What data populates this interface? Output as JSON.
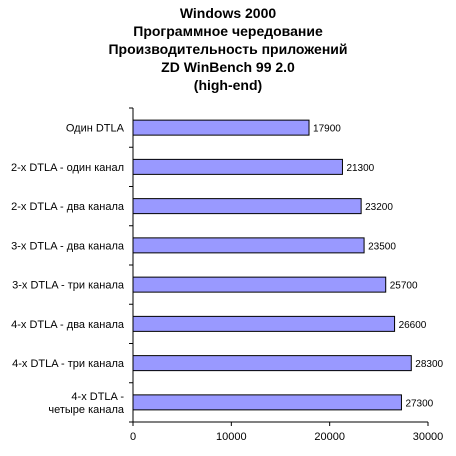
{
  "chart_data": {
    "type": "bar",
    "orientation": "horizontal",
    "title_lines": [
      "Windows 2000",
      "Программное чередование",
      "Производительность приложений",
      "ZD WinBench 99 2.0",
      "(high-end)"
    ],
    "categories": [
      [
        "Один DTLA"
      ],
      [
        "2-х DTLA - один канал"
      ],
      [
        "2-х DTLA - два канала"
      ],
      [
        "3-х DTLA - два канала"
      ],
      [
        "3-х DTLA - три канала"
      ],
      [
        "4-х DTLA - два канала"
      ],
      [
        "4-х DTLA - три канала"
      ],
      [
        "4-х DTLA -",
        "четыре канала"
      ]
    ],
    "values": [
      17900,
      21300,
      23200,
      23500,
      25700,
      26600,
      28300,
      27300
    ],
    "xlim": [
      0,
      30000
    ],
    "x_ticks": [
      0,
      10000,
      20000,
      30000
    ],
    "x_tick_labels": [
      "0",
      "10000",
      "20000",
      "30000"
    ],
    "bar_color": "#9999ff",
    "bar_stroke": "#000000",
    "grid": false,
    "legend": "none"
  }
}
